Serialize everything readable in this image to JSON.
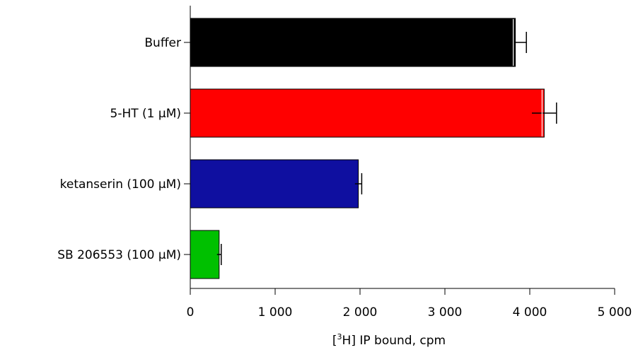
{
  "chart_data": {
    "type": "bar",
    "orientation": "horizontal",
    "categories": [
      "Buffer",
      "5-HT (1 µM)",
      "ketanserin (100 µM)",
      "SB 206553 (100 µM)"
    ],
    "values": [
      3830,
      4170,
      1980,
      340
    ],
    "errors": [
      130,
      145,
      40,
      25
    ],
    "colors": [
      "#000000",
      "#ff0000",
      "#0f0fa0",
      "#00c000"
    ],
    "xlabel_prefix": "[",
    "xlabel_sup": "3",
    "xlabel_main": "H] IP bound, cpm",
    "xlim": [
      0,
      5000
    ],
    "xticks": [
      0,
      1000,
      2000,
      3000,
      4000,
      5000
    ],
    "xtick_labels": [
      "0",
      "1 000",
      "2 000",
      "3 000",
      "4 000",
      "5 000"
    ],
    "grid": false
  }
}
